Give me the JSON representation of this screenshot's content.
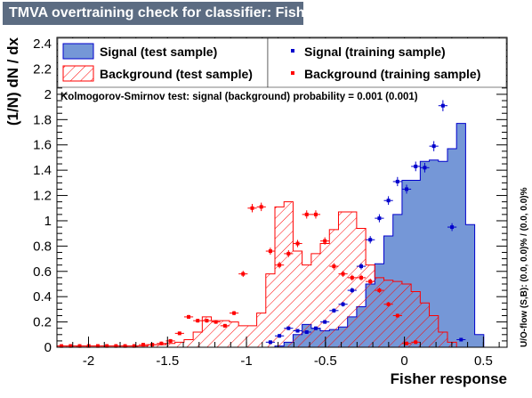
{
  "title": "TMVA overtraining check for classifier: Fisher",
  "ks_text": "Kolmogorov-Smirnov test: signal (background) probability = 0.001 (0.001)",
  "overflow_text": "U/O-flow (S,B): (0.0, 0.0)% / (0.0, 0.0)%",
  "colors": {
    "signal_fill": "#7597d7",
    "signal_line": "#0000cc",
    "signal_point": "#0000cc",
    "background_hatch": "#ff0000",
    "background_point": "#ff0000",
    "title_bg": "#5c6c82"
  },
  "legend": {
    "signal_test": "Signal (test sample)",
    "background_test": "Background (test sample)",
    "signal_train": "Signal (training sample)",
    "background_train": "Background (training sample)"
  },
  "chart_data": {
    "type": "histogram",
    "xlabel": "Fisher response",
    "ylabel": "(1/N) dN / dx",
    "xlim": [
      -2.2,
      0.65
    ],
    "ylim": [
      0,
      2.45
    ],
    "x_ticks": [
      "-2",
      "-1.5",
      "-1",
      "-0.5",
      "0",
      "0.5"
    ],
    "x_tick_values": [
      -2,
      -1.5,
      -1,
      -0.5,
      0,
      0.5
    ],
    "y_ticks": [
      "0",
      "0.2",
      "0.4",
      "0.6",
      "0.8",
      "1",
      "1.2",
      "1.4",
      "1.6",
      "1.8",
      "2",
      "2.2",
      "2.4"
    ],
    "y_tick_values": [
      0,
      0.2,
      0.4,
      0.6,
      0.8,
      1,
      1.2,
      1.4,
      1.6,
      1.8,
      2,
      2.2,
      2.4
    ],
    "bin_edges": [
      -2.2,
      -2.1425,
      -2.085,
      -2.0275,
      -1.97,
      -1.9125,
      -1.855,
      -1.7975,
      -1.74,
      -1.6825,
      -1.625,
      -1.5675,
      -1.51,
      -1.4525,
      -1.395,
      -1.3375,
      -1.28,
      -1.2225,
      -1.165,
      -1.1075,
      -1.05,
      -0.9925,
      -0.935,
      -0.8775,
      -0.82,
      -0.7625,
      -0.705,
      -0.6475,
      -0.59,
      -0.5325,
      -0.475,
      -0.4175,
      -0.36,
      -0.3025,
      -0.245,
      -0.1875,
      -0.13,
      -0.0725,
      -0.015,
      0.0425,
      0.1,
      0.1575,
      0.215,
      0.2725,
      0.33,
      0.3875,
      0.445,
      0.5025,
      0.56,
      0.6175
    ],
    "series": [
      {
        "name": "Signal (test sample)",
        "style": "filled",
        "values": [
          0,
          0,
          0,
          0,
          0,
          0,
          0,
          0,
          0,
          0,
          0,
          0,
          0,
          0,
          0,
          0,
          0,
          0,
          0,
          0,
          0,
          0,
          0,
          0,
          0.01,
          0.04,
          0.1,
          0.18,
          0.15,
          0.13,
          0.14,
          0.16,
          0.24,
          0.32,
          0.5,
          0.66,
          0.88,
          1.05,
          1.32,
          1.32,
          1.47,
          1.48,
          1.47,
          1.57,
          1.77,
          0.97,
          0.1,
          0,
          0
        ]
      },
      {
        "name": "Background (test sample)",
        "style": "hatched",
        "values": [
          0.01,
          0.01,
          0.01,
          0.01,
          0.01,
          0.01,
          0.01,
          0.01,
          0.01,
          0.01,
          0.02,
          0.02,
          0.03,
          0.04,
          0.06,
          0.12,
          0.24,
          0.21,
          0.21,
          0.2,
          0.17,
          0.17,
          0.27,
          0.58,
          1.11,
          1.15,
          0.76,
          0.65,
          0.74,
          0.82,
          0.93,
          1.07,
          1.07,
          0.94,
          0.65,
          0.55,
          0.53,
          0.52,
          0.5,
          0.44,
          0.35,
          0.25,
          0.12,
          0.04,
          0,
          0,
          0,
          0,
          0
        ]
      },
      {
        "name": "Signal (training sample)",
        "style": "points",
        "values": [
          null,
          null,
          null,
          null,
          null,
          null,
          null,
          null,
          null,
          null,
          null,
          null,
          null,
          null,
          null,
          null,
          null,
          null,
          null,
          null,
          null,
          null,
          null,
          0.04,
          0.09,
          0.15,
          0.13,
          0.12,
          0.15,
          0.2,
          0.29,
          0.34,
          0.45,
          0.64,
          0.85,
          1.02,
          1.16,
          1.31,
          1.25,
          1.43,
          1.42,
          1.59,
          1.91,
          0.95,
          0.06,
          null,
          null,
          null,
          null
        ]
      },
      {
        "name": "Background (training sample)",
        "style": "points",
        "values": [
          0.01,
          0.01,
          0.01,
          0.01,
          0.01,
          0.01,
          0.01,
          0.01,
          0.01,
          0.02,
          0.02,
          0.03,
          0.05,
          0.11,
          0.24,
          0.21,
          0.21,
          0.2,
          0.17,
          0.27,
          0.58,
          1.1,
          1.11,
          0.76,
          0.65,
          0.74,
          0.82,
          1.05,
          1.05,
          0.84,
          0.64,
          0.58,
          0.55,
          0.55,
          0.52,
          0.45,
          0.34,
          0.25,
          0.03,
          0.04,
          null,
          null,
          null,
          null,
          null,
          null,
          null,
          null,
          null
        ]
      }
    ]
  }
}
